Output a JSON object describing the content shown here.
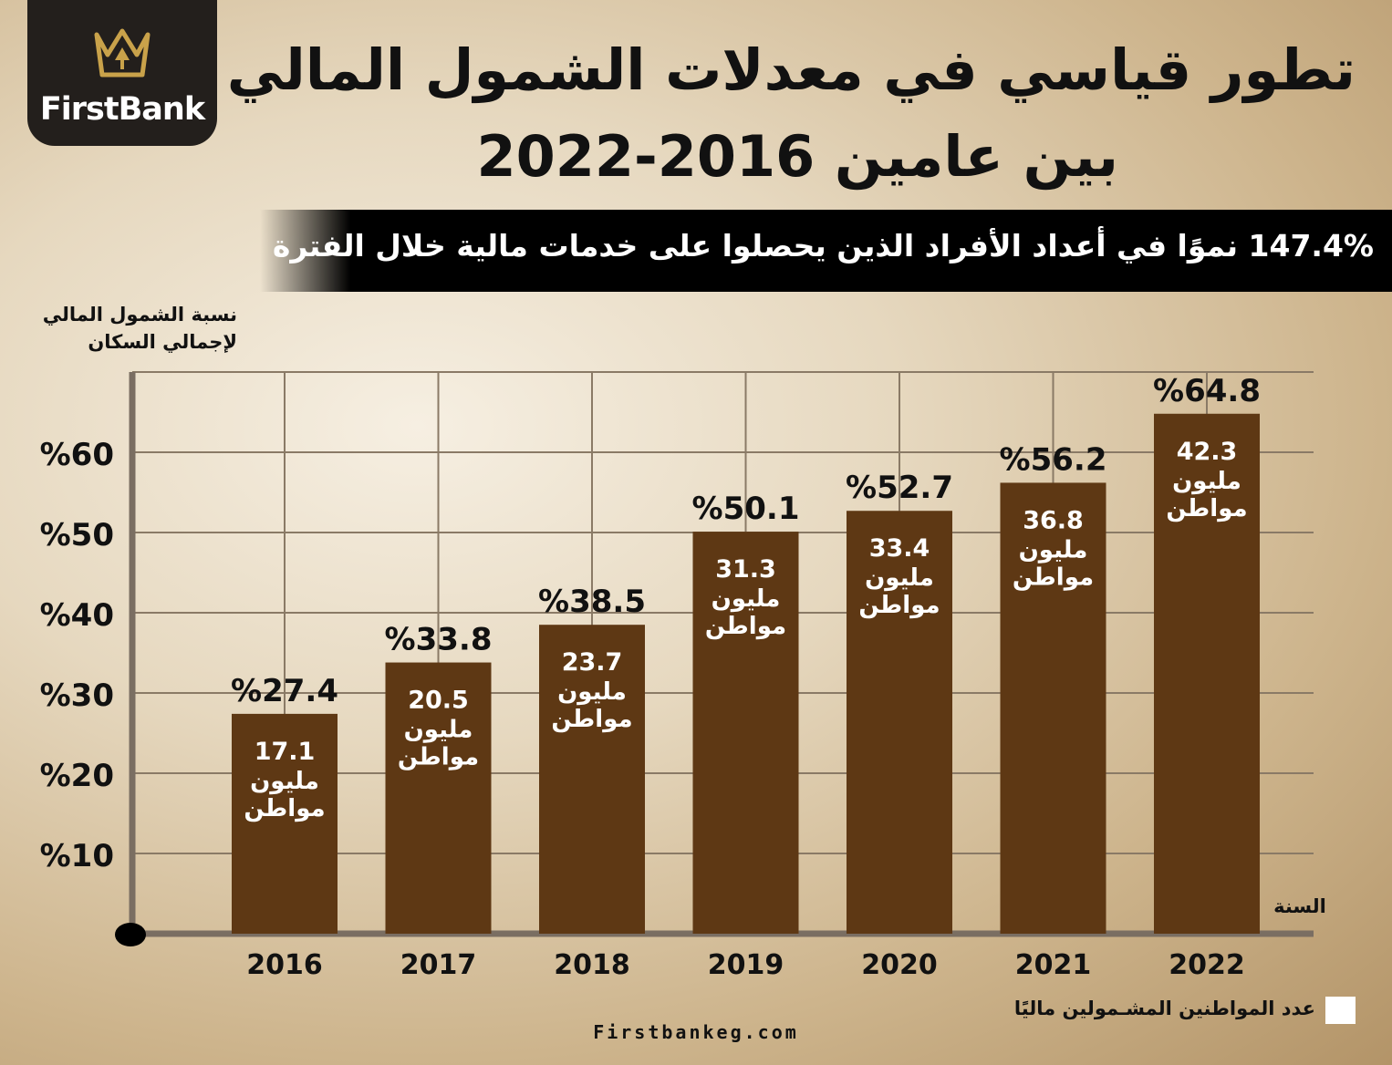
{
  "brand": {
    "name": "FirstBank"
  },
  "title": {
    "line1": "تطور قياسي في معدلات الشمول المالي",
    "line2": "بين عامين 2016-2022"
  },
  "banner": {
    "text": "147.4% نموًا في أعداد الأفراد الذين يحصلوا على خدمات مالية خلال الفترة"
  },
  "legend": {
    "label": "عدد المواطنين المشـمولين ماليًا",
    "swatch_color": "#ffffff"
  },
  "footer": {
    "website": "Firstbankeg.com"
  },
  "colors": {
    "bar": "#5e3814",
    "grid": "#8a7a66",
    "axis": "#7a6e62"
  },
  "chart_data": {
    "type": "bar",
    "xlabel": "السنة",
    "ylabel": "نسبة الشمول المالي لإجمالي السكان",
    "categories": [
      "2016",
      "2017",
      "2018",
      "2019",
      "2020",
      "2021",
      "2022"
    ],
    "values": [
      27.4,
      33.8,
      38.5,
      50.1,
      52.7,
      56.2,
      64.8
    ],
    "value_labels": [
      "%27.4",
      "%33.8",
      "%38.5",
      "%50.1",
      "%52.7",
      "%56.2",
      "%64.8"
    ],
    "citizens_millions": [
      "17.1",
      "20.5",
      "23.7",
      "31.3",
      "33.4",
      "36.8",
      "42.3"
    ],
    "citizens_unit_line1": "مليون",
    "citizens_unit_line2": "مواطن",
    "yticks": [
      10,
      20,
      30,
      40,
      50,
      60
    ],
    "ytick_labels": [
      "%10",
      "%20",
      "%30",
      "%40",
      "%50",
      "%60"
    ],
    "ylim": [
      0,
      70
    ],
    "grid": true
  }
}
